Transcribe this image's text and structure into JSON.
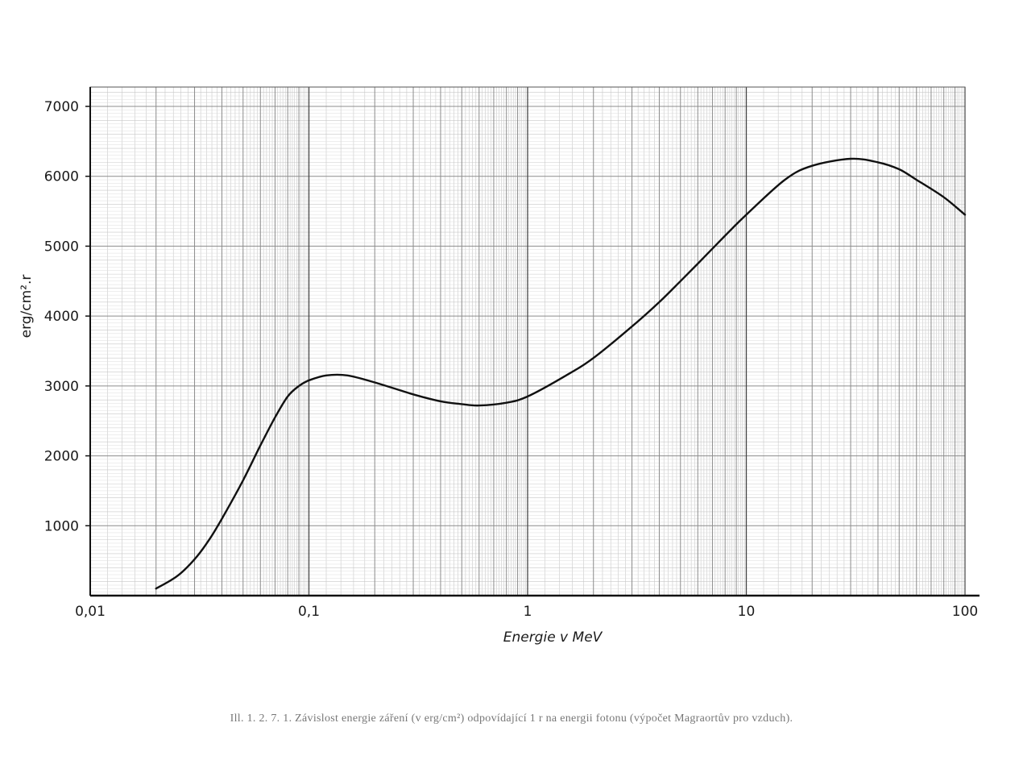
{
  "chart_data": {
    "type": "line",
    "xscale": "log",
    "xlim": [
      0.01,
      100
    ],
    "ylim": [
      0,
      7000
    ],
    "grid": true,
    "xlabel": "Energie v MeV",
    "ylabel": "erg/cm².r",
    "xticks": [
      {
        "value": 0.01,
        "label": "0,01"
      },
      {
        "value": 0.1,
        "label": "0,1"
      },
      {
        "value": 1,
        "label": "1"
      },
      {
        "value": 10,
        "label": "10"
      },
      {
        "value": 100,
        "label": "100"
      }
    ],
    "yticks": [
      {
        "value": 1000,
        "label": "1000"
      },
      {
        "value": 2000,
        "label": "2000"
      },
      {
        "value": 3000,
        "label": "3000"
      },
      {
        "value": 4000,
        "label": "4000"
      },
      {
        "value": 5000,
        "label": "5000"
      },
      {
        "value": 6000,
        "label": "6000"
      },
      {
        "value": 7000,
        "label": "7000"
      }
    ],
    "series": [
      {
        "x": [
          0.02,
          0.025,
          0.03,
          0.035,
          0.04,
          0.05,
          0.06,
          0.07,
          0.08,
          0.09,
          0.1,
          0.12,
          0.15,
          0.2,
          0.3,
          0.4,
          0.5,
          0.6,
          0.8,
          1,
          1.5,
          2,
          3,
          4,
          5,
          6,
          8,
          10,
          15,
          20,
          30,
          40,
          50,
          60,
          80,
          100
        ],
        "values": [
          100,
          280,
          520,
          800,
          1100,
          1650,
          2150,
          2550,
          2850,
          3000,
          3080,
          3150,
          3150,
          3050,
          2880,
          2780,
          2740,
          2720,
          2760,
          2850,
          3150,
          3400,
          3850,
          4200,
          4500,
          4750,
          5150,
          5450,
          5950,
          6150,
          6250,
          6200,
          6100,
          5950,
          5700,
          5450
        ]
      }
    ]
  },
  "caption": "Ill. 1. 2. 7. 1. Závislost energie záření (v erg/cm²) odpovídající 1 r na energii fotonu (výpočet Magraortův pro vzduch)."
}
